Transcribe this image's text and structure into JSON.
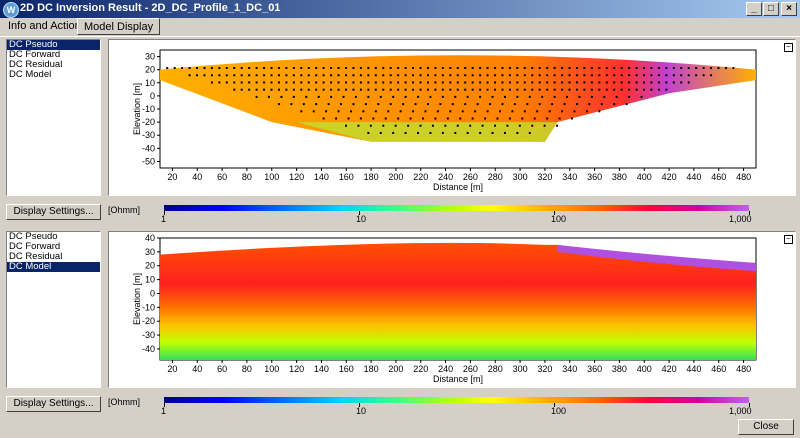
{
  "window": {
    "title": "2D DC Inversion Result - 2D_DC_Profile_1_DC_01",
    "minimize_label": "_",
    "maximize_label": "□",
    "close_label": "×"
  },
  "tabs": [
    {
      "label": "Info and Actions"
    },
    {
      "label": "Model Display"
    }
  ],
  "top_list": {
    "items": [
      "DC Pseudo",
      "DC Forward",
      "DC Residual",
      "DC Model"
    ],
    "selected": 0
  },
  "bottom_list": {
    "items": [
      "DC Pseudo",
      "DC Forward",
      "DC Residual",
      "DC Model"
    ],
    "selected": 3
  },
  "display_settings_label": "Display Settings...",
  "close_label": "Close",
  "panel_collapse_label": "−",
  "colorbar": {
    "unit": "[Ohmm]",
    "ticks": [
      "1",
      "10",
      "100",
      "1,000"
    ],
    "log_range": [
      1,
      1000
    ]
  },
  "chart_data": [
    {
      "type": "heatmap",
      "name_hint": "pseudosection",
      "xlabel": "Distance [m]",
      "ylabel": "Elevation [m]",
      "xlim": [
        10,
        490
      ],
      "ylim": [
        -55,
        35
      ],
      "xticks": [
        20,
        40,
        60,
        80,
        100,
        120,
        140,
        160,
        180,
        200,
        220,
        240,
        260,
        280,
        300,
        320,
        340,
        360,
        380,
        400,
        420,
        440,
        460,
        480
      ],
      "yticks": [
        30,
        20,
        10,
        0,
        -10,
        -20,
        -30,
        -40,
        -50
      ]
    },
    {
      "type": "heatmap",
      "name_hint": "model",
      "xlabel": "Distance [m]",
      "ylabel": "Elevation [m]",
      "xlim": [
        10,
        490
      ],
      "ylim": [
        -48,
        40
      ],
      "xticks": [
        20,
        40,
        60,
        80,
        100,
        120,
        140,
        160,
        180,
        200,
        220,
        240,
        260,
        280,
        300,
        320,
        340,
        360,
        380,
        400,
        420,
        440,
        460,
        480
      ],
      "yticks": [
        40,
        30,
        20,
        10,
        0,
        -10,
        -20,
        -30,
        -40
      ]
    }
  ]
}
